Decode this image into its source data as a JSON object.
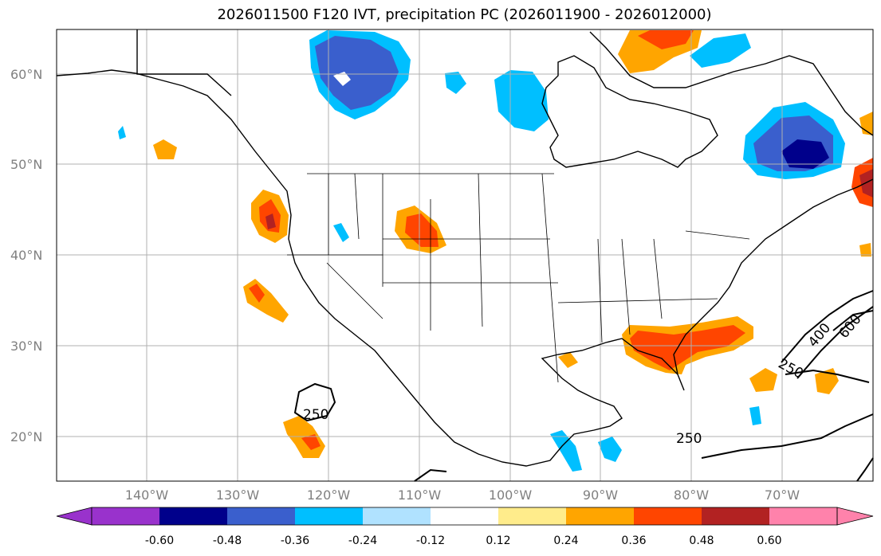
{
  "title": "2026011500 F120 IVT, precipitation PC (2026011900 - 2026012000)",
  "map": {
    "lat_labels": [
      "60°N",
      "50°N",
      "40°N",
      "30°N",
      "20°N"
    ],
    "lon_labels": [
      "140°W",
      "130°W",
      "120°W",
      "110°W",
      "100°W",
      "90°W",
      "80°W",
      "70°W"
    ],
    "ivt_contour_labels": [
      "250",
      "250",
      "250",
      "400",
      "600"
    ]
  },
  "colorbar": {
    "labels": [
      "-0.60",
      "-0.48",
      "-0.36",
      "-0.24",
      "-0.12",
      "0.12",
      "0.24",
      "0.36",
      "0.48",
      "0.60"
    ],
    "colors": [
      "#9932cc",
      "#00008b",
      "#3a5fcd",
      "#00bfff",
      "#b0e2ff",
      "#ffffff",
      "#ffec8b",
      "#ffa500",
      "#ff4500",
      "#b22222",
      "#ff82ab"
    ]
  },
  "colors": {
    "grid": "#b0b0b0",
    "coast": "#000000",
    "neg_light": "#b0e2ff",
    "neg_mid": "#00bfff",
    "neg_dark": "#3a5fcd",
    "neg_darkest": "#00008b",
    "pos_light": "#ffec8b",
    "pos_mid": "#ffa500",
    "pos_dark": "#ff4500",
    "pos_darkest": "#b22222"
  }
}
